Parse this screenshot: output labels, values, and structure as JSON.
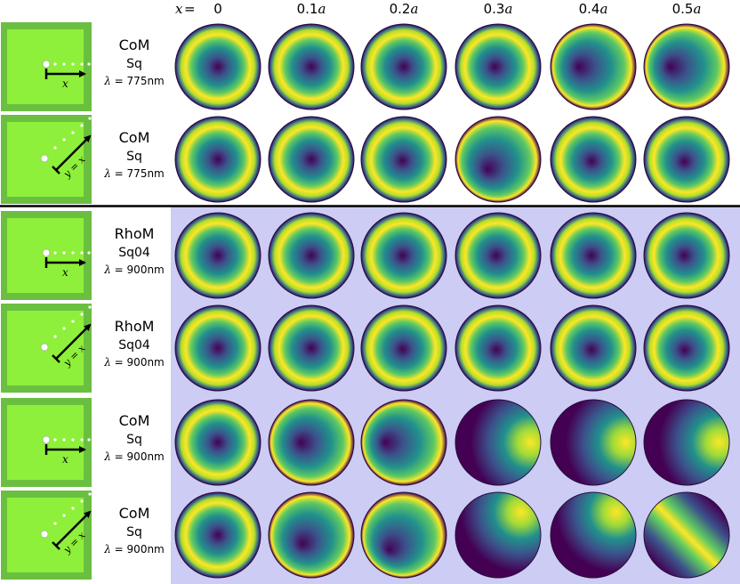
{
  "header": {
    "x_label_prefix": "x",
    "x_label_eq": " =",
    "columns": [
      {
        "num": "0",
        "unit": ""
      },
      {
        "num": "0.1",
        "unit": "a"
      },
      {
        "num": "0.2",
        "unit": "a"
      },
      {
        "num": "0.3",
        "unit": "a"
      },
      {
        "num": "0.4",
        "unit": "a"
      },
      {
        "num": "0.5",
        "unit": "a"
      }
    ]
  },
  "colors": {
    "outer_green": "#6abf40",
    "inner_green": "#8ef03a",
    "highlight_bg": "#ccccf4",
    "viridis_low": "#440154",
    "viridis_mid": "#21918c",
    "viridis_high": "#fde725"
  },
  "rows": [
    {
      "line1": "CoM",
      "line2": "Sq",
      "lambda_sym": "λ",
      "lambda_val": " = 775nm",
      "inset": "x",
      "inset_label": "x",
      "highlight": false
    },
    {
      "line1": "CoM",
      "line2": "Sq",
      "lambda_sym": "λ",
      "lambda_val": " = 775nm",
      "inset": "diag",
      "inset_label": "y = x",
      "highlight": false
    },
    {
      "line1": "RhoM",
      "line2": "Sq04",
      "lambda_sym": "λ",
      "lambda_val": " = 900nm",
      "inset": "x",
      "inset_label": "x",
      "highlight": true
    },
    {
      "line1": "RhoM",
      "line2": "Sq04",
      "lambda_sym": "λ",
      "lambda_val": " = 900nm",
      "inset": "diag",
      "inset_label": "y = x",
      "highlight": true
    },
    {
      "line1": "CoM",
      "line2": "Sq",
      "lambda_sym": "λ",
      "lambda_val": " = 900nm",
      "inset": "x",
      "inset_label": "x",
      "highlight": true
    },
    {
      "line1": "CoM",
      "line2": "Sq",
      "lambda_sym": "λ",
      "lambda_val": " = 900nm",
      "inset": "diag",
      "inset_label": "y = x",
      "highlight": true
    }
  ]
}
